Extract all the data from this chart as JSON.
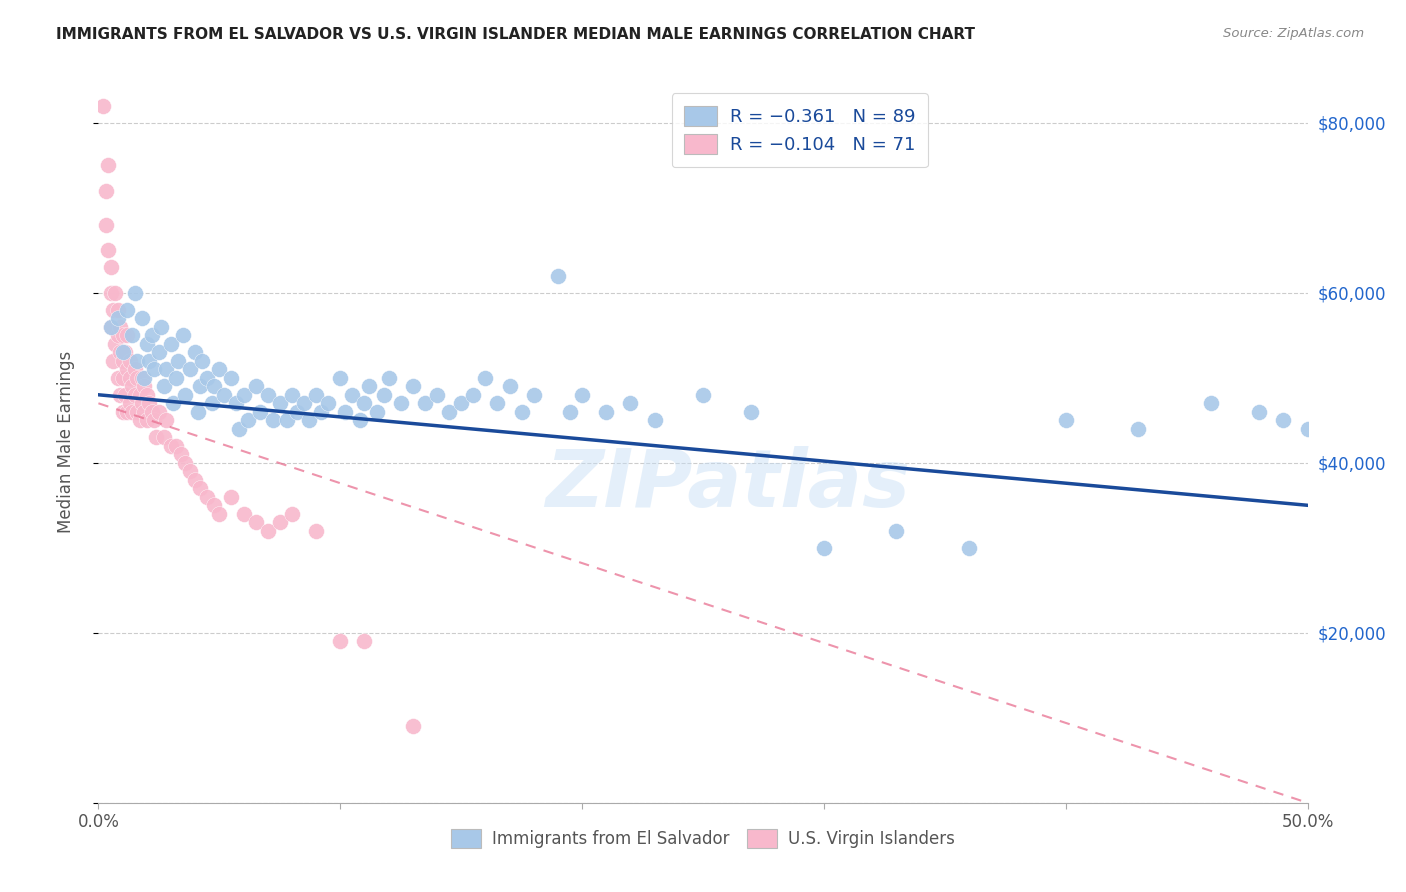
{
  "title": "IMMIGRANTS FROM EL SALVADOR VS U.S. VIRGIN ISLANDER MEDIAN MALE EARNINGS CORRELATION CHART",
  "source": "Source: ZipAtlas.com",
  "ylabel": "Median Male Earnings",
  "xlim": [
    0.0,
    0.5
  ],
  "ylim": [
    0,
    85000
  ],
  "yticks": [
    0,
    20000,
    40000,
    60000,
    80000
  ],
  "ytick_labels": [
    "",
    "$20,000",
    "$40,000",
    "$60,000",
    "$80,000"
  ],
  "xticks": [
    0.0,
    0.1,
    0.2,
    0.3,
    0.4,
    0.5
  ],
  "xtick_labels_show": [
    "0.0%",
    "",
    "",
    "",
    "",
    "50.0%"
  ],
  "legend1_label": "R = −0.361   N = 89",
  "legend2_label": "R = −0.104   N = 71",
  "blue_color": "#a8c8e8",
  "pink_color": "#f8b8cc",
  "blue_line_color": "#1a4a9a",
  "pink_line_color": "#e87090",
  "watermark": "ZIPatlas",
  "blue_line_x0": 0.0,
  "blue_line_y0": 48000,
  "blue_line_x1": 0.5,
  "blue_line_y1": 35000,
  "pink_line_x0": 0.0,
  "pink_line_y0": 47000,
  "pink_line_x1": 0.5,
  "pink_line_y1": 0,
  "blue_scatter_x": [
    0.005,
    0.008,
    0.01,
    0.012,
    0.014,
    0.015,
    0.016,
    0.018,
    0.019,
    0.02,
    0.021,
    0.022,
    0.023,
    0.025,
    0.026,
    0.027,
    0.028,
    0.03,
    0.031,
    0.032,
    0.033,
    0.035,
    0.036,
    0.038,
    0.04,
    0.041,
    0.042,
    0.043,
    0.045,
    0.047,
    0.048,
    0.05,
    0.052,
    0.055,
    0.057,
    0.058,
    0.06,
    0.062,
    0.065,
    0.067,
    0.07,
    0.072,
    0.075,
    0.078,
    0.08,
    0.082,
    0.085,
    0.087,
    0.09,
    0.092,
    0.095,
    0.1,
    0.102,
    0.105,
    0.108,
    0.11,
    0.112,
    0.115,
    0.118,
    0.12,
    0.125,
    0.13,
    0.135,
    0.14,
    0.145,
    0.15,
    0.155,
    0.16,
    0.165,
    0.17,
    0.175,
    0.18,
    0.19,
    0.195,
    0.2,
    0.21,
    0.22,
    0.23,
    0.25,
    0.27,
    0.3,
    0.33,
    0.36,
    0.4,
    0.43,
    0.46,
    0.48,
    0.49,
    0.5
  ],
  "blue_scatter_y": [
    56000,
    57000,
    53000,
    58000,
    55000,
    60000,
    52000,
    57000,
    50000,
    54000,
    52000,
    55000,
    51000,
    53000,
    56000,
    49000,
    51000,
    54000,
    47000,
    50000,
    52000,
    55000,
    48000,
    51000,
    53000,
    46000,
    49000,
    52000,
    50000,
    47000,
    49000,
    51000,
    48000,
    50000,
    47000,
    44000,
    48000,
    45000,
    49000,
    46000,
    48000,
    45000,
    47000,
    45000,
    48000,
    46000,
    47000,
    45000,
    48000,
    46000,
    47000,
    50000,
    46000,
    48000,
    45000,
    47000,
    49000,
    46000,
    48000,
    50000,
    47000,
    49000,
    47000,
    48000,
    46000,
    47000,
    48000,
    50000,
    47000,
    49000,
    46000,
    48000,
    62000,
    46000,
    48000,
    46000,
    47000,
    45000,
    48000,
    46000,
    30000,
    32000,
    30000,
    45000,
    44000,
    47000,
    46000,
    45000,
    44000
  ],
  "pink_scatter_x": [
    0.002,
    0.003,
    0.003,
    0.004,
    0.004,
    0.005,
    0.005,
    0.005,
    0.006,
    0.006,
    0.007,
    0.007,
    0.008,
    0.008,
    0.008,
    0.009,
    0.009,
    0.009,
    0.01,
    0.01,
    0.01,
    0.01,
    0.011,
    0.011,
    0.012,
    0.012,
    0.012,
    0.013,
    0.013,
    0.013,
    0.014,
    0.014,
    0.015,
    0.015,
    0.016,
    0.016,
    0.017,
    0.017,
    0.018,
    0.018,
    0.019,
    0.019,
    0.02,
    0.02,
    0.021,
    0.022,
    0.023,
    0.024,
    0.025,
    0.027,
    0.028,
    0.03,
    0.032,
    0.034,
    0.036,
    0.038,
    0.04,
    0.042,
    0.045,
    0.048,
    0.05,
    0.055,
    0.06,
    0.065,
    0.07,
    0.075,
    0.08,
    0.09,
    0.1,
    0.11,
    0.13
  ],
  "pink_scatter_y": [
    82000,
    72000,
    68000,
    65000,
    75000,
    60000,
    63000,
    56000,
    58000,
    52000,
    54000,
    60000,
    55000,
    50000,
    58000,
    53000,
    56000,
    48000,
    52000,
    55000,
    50000,
    46000,
    53000,
    48000,
    51000,
    46000,
    55000,
    50000,
    47000,
    52000,
    49000,
    46000,
    51000,
    48000,
    50000,
    46000,
    48000,
    45000,
    50000,
    47000,
    46000,
    49000,
    48000,
    45000,
    47000,
    46000,
    45000,
    43000,
    46000,
    43000,
    45000,
    42000,
    42000,
    41000,
    40000,
    39000,
    38000,
    37000,
    36000,
    35000,
    34000,
    36000,
    34000,
    33000,
    32000,
    33000,
    34000,
    32000,
    19000,
    19000,
    9000
  ]
}
